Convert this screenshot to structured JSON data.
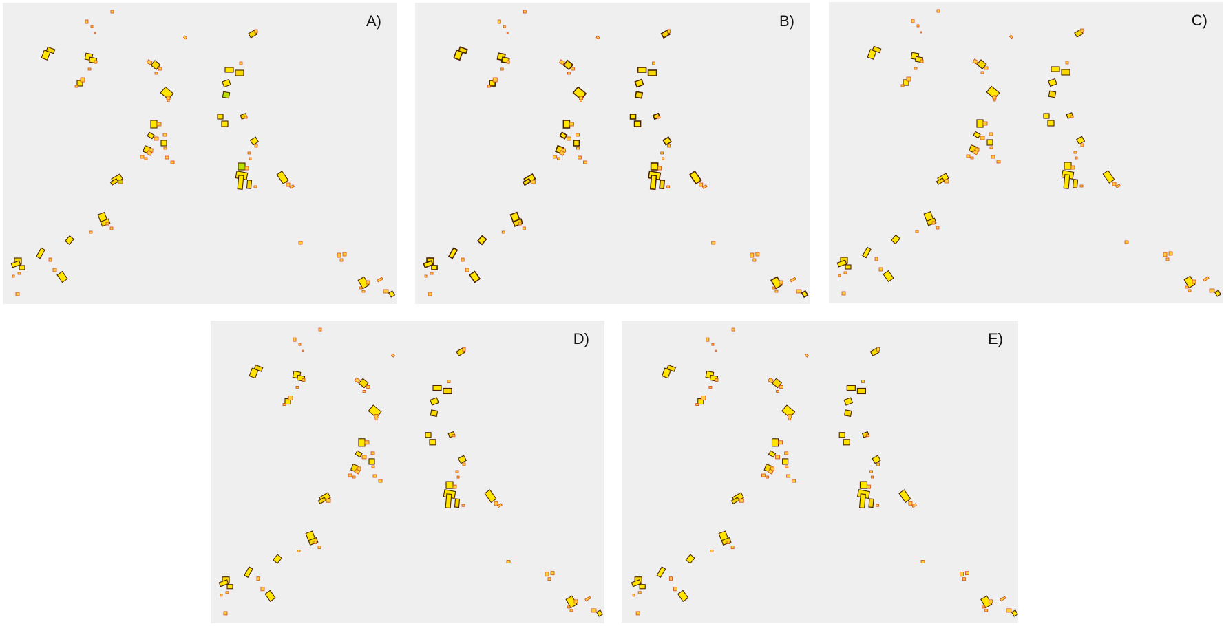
{
  "colors": {
    "background": "#efefef",
    "building_fill": "#ffe600",
    "building_fill_alt": "#f5d800",
    "building_stroke": "#4a2200",
    "small_fill": "#ffcf3a",
    "small_stroke": "#d1491b",
    "green_variant": "#b9e000"
  },
  "panels": [
    {
      "id": "A",
      "label": "A)"
    },
    {
      "id": "B",
      "label": "B)"
    },
    {
      "id": "C",
      "label": "C)"
    },
    {
      "id": "D",
      "label": "D)"
    },
    {
      "id": "E",
      "label": "E)"
    }
  ]
}
